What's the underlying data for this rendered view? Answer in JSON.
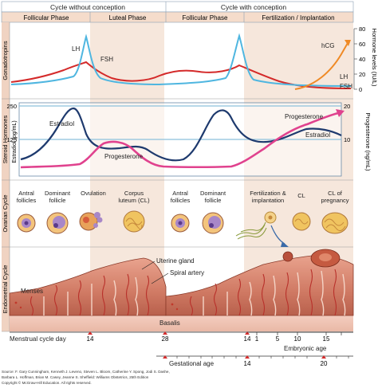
{
  "header": {
    "cycle_without": "Cycle without conception",
    "cycle_with": "Cycle with conception",
    "phases": [
      "Follicular Phase",
      "Luteal Phase",
      "Follicular Phase",
      "Fertilization / Implantation"
    ]
  },
  "rows": {
    "gonadotropins": "Gonadotropins",
    "steroid": "Steroid Hormones",
    "ovarian": "Ovarian Cycle",
    "endometrial": "Endometrial Cycle"
  },
  "gonadotropins": {
    "lh_label": "LH",
    "fsh_label": "FSH",
    "hcg_label": "hCG",
    "lh_label_right": "LH",
    "fsh_label_right": "FSH",
    "axis_title_right": "Hormone levels (IU/L)",
    "ticks": [
      "80",
      "60",
      "40",
      "20",
      "0"
    ]
  },
  "steroids": {
    "estradiol_label": "Estradiol",
    "estradiol_label_right": "Estradiol",
    "progesterone_label": "Progesterone",
    "progesterone_label_right": "Progesterone",
    "left_axis_title": "Estradiol (pg/mL)",
    "right_axis_title": "Progesterone (ng/mL)",
    "left_ticks": [
      "250",
      "125"
    ],
    "right_ticks": [
      "20",
      "10"
    ]
  },
  "ovarian": {
    "stages": [
      "Antral follicles",
      "Dominant follicle",
      "Ovulation",
      "Corpus luteum (CL)",
      "Antral follicles",
      "Dominant follicle",
      "Fertilization & implantation",
      "CL",
      "CL of pregnancy"
    ]
  },
  "endometrial": {
    "menses": "Menses",
    "uterine_gland": "Uterine gland",
    "spiral_artery": "Spiral artery",
    "basalis": "Basalis"
  },
  "axes": {
    "menstrual_label": "Menstrual cycle day",
    "menstrual_ticks": [
      "14",
      "28",
      "14"
    ],
    "embryonic_label": "Embryonic age",
    "embryonic_ticks": [
      "1",
      "5",
      "10",
      "15"
    ],
    "gestational_label": "Gestational age",
    "gestational_ticks": [
      "14",
      "20"
    ]
  },
  "source_lines": [
    "Source: F. Gary Cunningham, Kenneth J. Leveno, Steven L. Bloom, Catherine Y. Spong, Jodi S. Dashe,",
    "Barbara L. Hoffman, Brian M. Casey, Jeanne S. Sheffield: Williams Obstetrics, 25th Edition",
    "Copyright © McGraw-Hill Education. All rights reserved."
  ],
  "colors": {
    "lh": "#4fb6e0",
    "fsh": "#d42a2a",
    "hcg": "#ef8a26",
    "estradiol": "#1e3a6e",
    "progesterone": "#e0428e",
    "luteal_shade": "#f6e7dc",
    "header_fill": "#f5dccb",
    "grid": "#8cc0dc",
    "endometrium": "#c8705a"
  }
}
